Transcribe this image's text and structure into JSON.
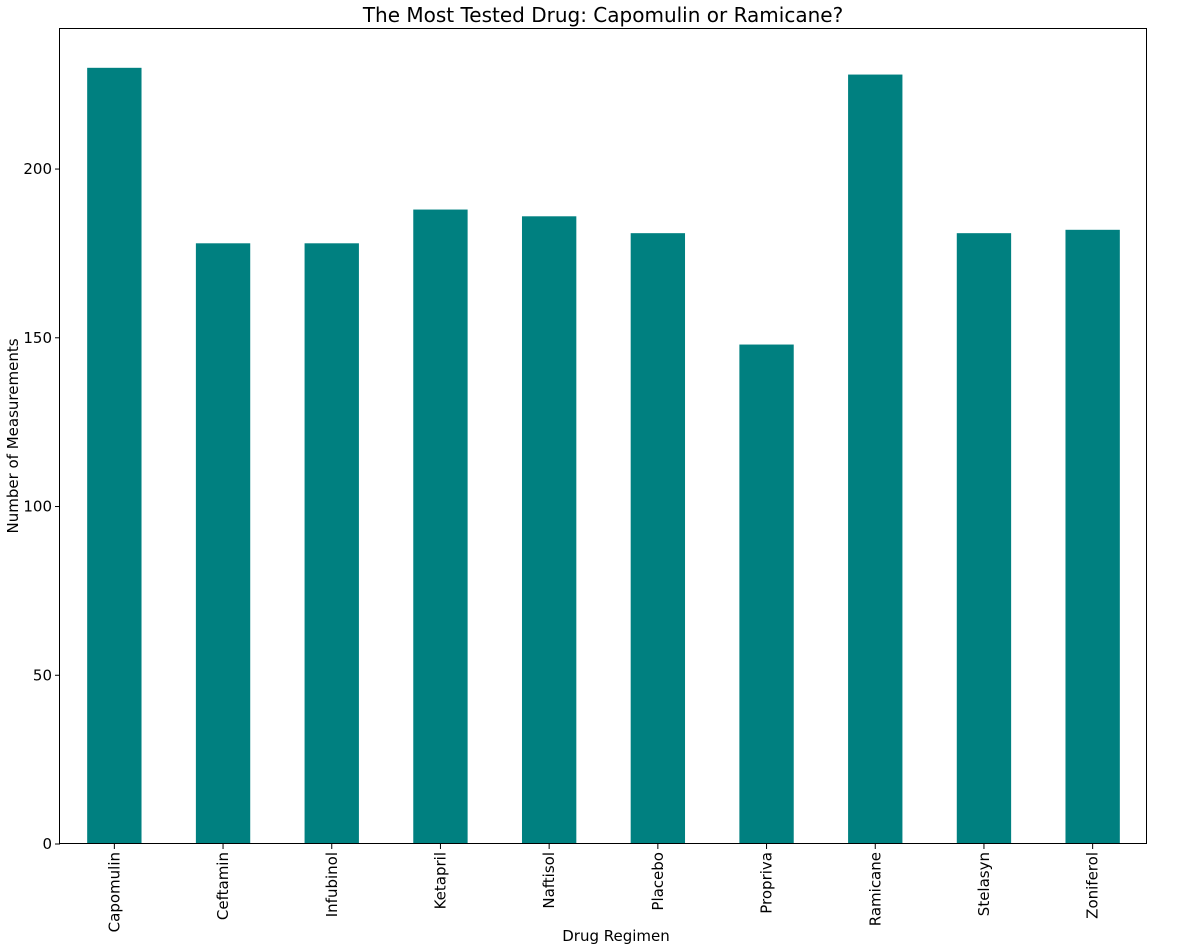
{
  "chart_data": {
    "type": "bar",
    "title": "The Most Tested Drug: Capomulin or Ramicane?",
    "xlabel": "Drug Regimen",
    "ylabel": "Number of Measurements",
    "categories": [
      "Capomulin",
      "Ceftamin",
      "Infubinol",
      "Ketapril",
      "Naftisol",
      "Placebo",
      "Propriva",
      "Ramicane",
      "Stelasyn",
      "Zoniferol"
    ],
    "series": [
      {
        "values": [
          230,
          178,
          178,
          188,
          186,
          181,
          148,
          228,
          181,
          182
        ]
      }
    ],
    "ylim": [
      0,
      241.5
    ],
    "yticks": [
      0,
      50,
      100,
      150,
      200
    ],
    "grid": false,
    "legend": "none",
    "bar_color": "#008080"
  }
}
